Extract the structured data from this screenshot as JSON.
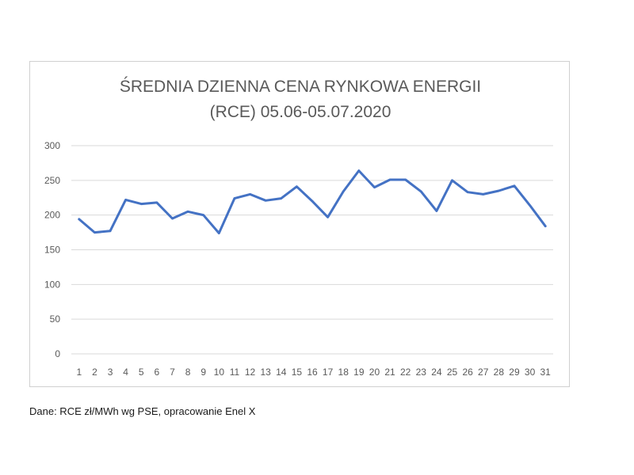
{
  "chart_data": {
    "type": "line",
    "title_line1": "ŚREDNIA DZIENNA CENA RYNKOWA ENERGII",
    "title_line2": "(RCE) 05.06-05.07.2020",
    "xlabel": "",
    "ylabel": "",
    "categories": [
      "1",
      "2",
      "3",
      "4",
      "5",
      "6",
      "7",
      "8",
      "9",
      "10",
      "11",
      "12",
      "13",
      "14",
      "15",
      "16",
      "17",
      "18",
      "19",
      "20",
      "21",
      "22",
      "23",
      "24",
      "25",
      "26",
      "27",
      "28",
      "29",
      "30",
      "31"
    ],
    "series": [
      {
        "values": [
          194,
          175,
          177,
          222,
          216,
          218,
          195,
          205,
          200,
          174,
          224,
          230,
          221,
          224,
          241,
          220,
          197,
          234,
          264,
          240,
          251,
          251,
          234,
          206,
          250,
          233,
          230,
          235,
          242,
          214,
          184
        ],
        "color": "#4472c4"
      }
    ],
    "ylim": [
      0,
      300
    ],
    "yticks": [
      0,
      50,
      100,
      150,
      200,
      250,
      300
    ],
    "grid": true,
    "legend": "none"
  },
  "footer": {
    "source": "Dane: RCE zł/MWh wg PSE, opracowanie Enel X"
  }
}
